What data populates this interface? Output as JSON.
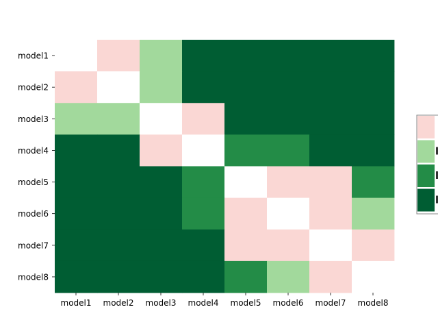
{
  "chart_data": {
    "type": "heatmap",
    "title": "",
    "xlabel": "",
    "ylabel": "",
    "rows": [
      "model1",
      "model2",
      "model3",
      "model4",
      "model5",
      "model6",
      "model7",
      "model8"
    ],
    "cols": [
      "model1",
      "model2",
      "model3",
      "model4",
      "model5",
      "model6",
      "model7",
      "model8"
    ],
    "levels": [
      {
        "label": "",
        "color": "#fad7d4"
      },
      {
        "label": "",
        "color": "#a2d99c"
      },
      {
        "label": "",
        "color": "#238c47"
      },
      {
        "label": "",
        "color": "#005d33"
      }
    ],
    "diagonal_color": "#ffffff",
    "matrix": [
      [
        null,
        0,
        1,
        3,
        3,
        3,
        3,
        3
      ],
      [
        0,
        null,
        1,
        3,
        3,
        3,
        3,
        3
      ],
      [
        1,
        1,
        null,
        0,
        3,
        3,
        3,
        3
      ],
      [
        3,
        3,
        0,
        null,
        2,
        2,
        3,
        3
      ],
      [
        3,
        3,
        3,
        2,
        null,
        0,
        0,
        2
      ],
      [
        3,
        3,
        3,
        2,
        0,
        null,
        0,
        1
      ],
      [
        3,
        3,
        3,
        3,
        0,
        0,
        null,
        0
      ],
      [
        3,
        3,
        3,
        3,
        2,
        1,
        0,
        null
      ]
    ],
    "legend": {
      "placement": "right",
      "entries_visible": 4
    }
  }
}
